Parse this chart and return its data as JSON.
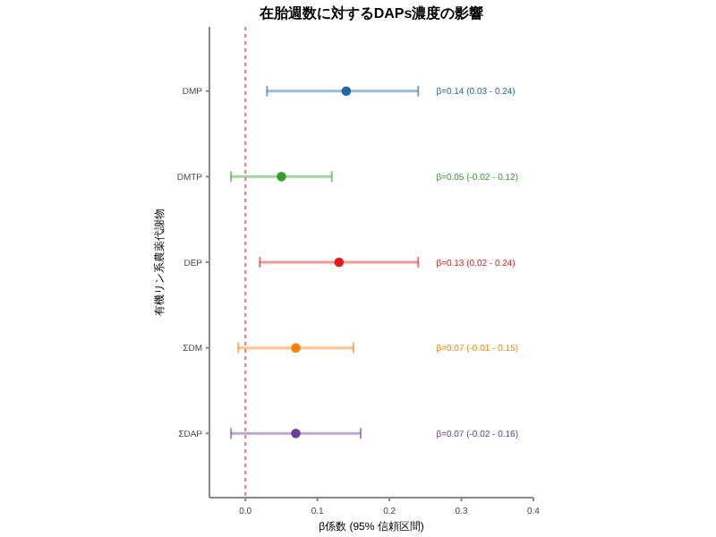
{
  "chart_data": {
    "type": "scatter",
    "orientation": "horizontal",
    "title": "在胎週数に対するDAPs濃度の影響",
    "xlabel": "β係数 (95% 信頼区間)",
    "ylabel": "有機リン系農薬代謝物",
    "categories": [
      "DMP",
      "DMTP",
      "DEP",
      "ΣDM",
      "ΣDAP"
    ],
    "values": [
      0.14,
      0.05,
      0.13,
      0.07,
      0.07
    ],
    "errors": [
      [
        0.03,
        0.24
      ],
      [
        -0.02,
        0.12
      ],
      [
        0.02,
        0.24
      ],
      [
        -0.01,
        0.15
      ],
      [
        -0.02,
        0.16
      ]
    ],
    "colors": [
      "#2166ac",
      "#33a02c",
      "#e31a1c",
      "#ff7f00",
      "#6a3d9a"
    ],
    "annotations": [
      "β=0.14 (0.03 - 0.24)",
      "β=0.05 (-0.02 - 0.12)",
      "β=0.13 (0.02 - 0.24)",
      "β=0.07 (-0.01 - 0.15)",
      "β=0.07 (-0.02 - 0.16)"
    ],
    "xlim": [
      -0.05,
      0.4
    ],
    "xticks": [
      {
        "value": 0,
        "label": "0.0"
      },
      0.1,
      0.2,
      0.3,
      0.4
    ],
    "ref_lines": [
      {
        "axis": "x",
        "value": 0,
        "color": "#f08080",
        "line_style": "dotted"
      }
    ],
    "grid": false,
    "marker": "circle"
  }
}
